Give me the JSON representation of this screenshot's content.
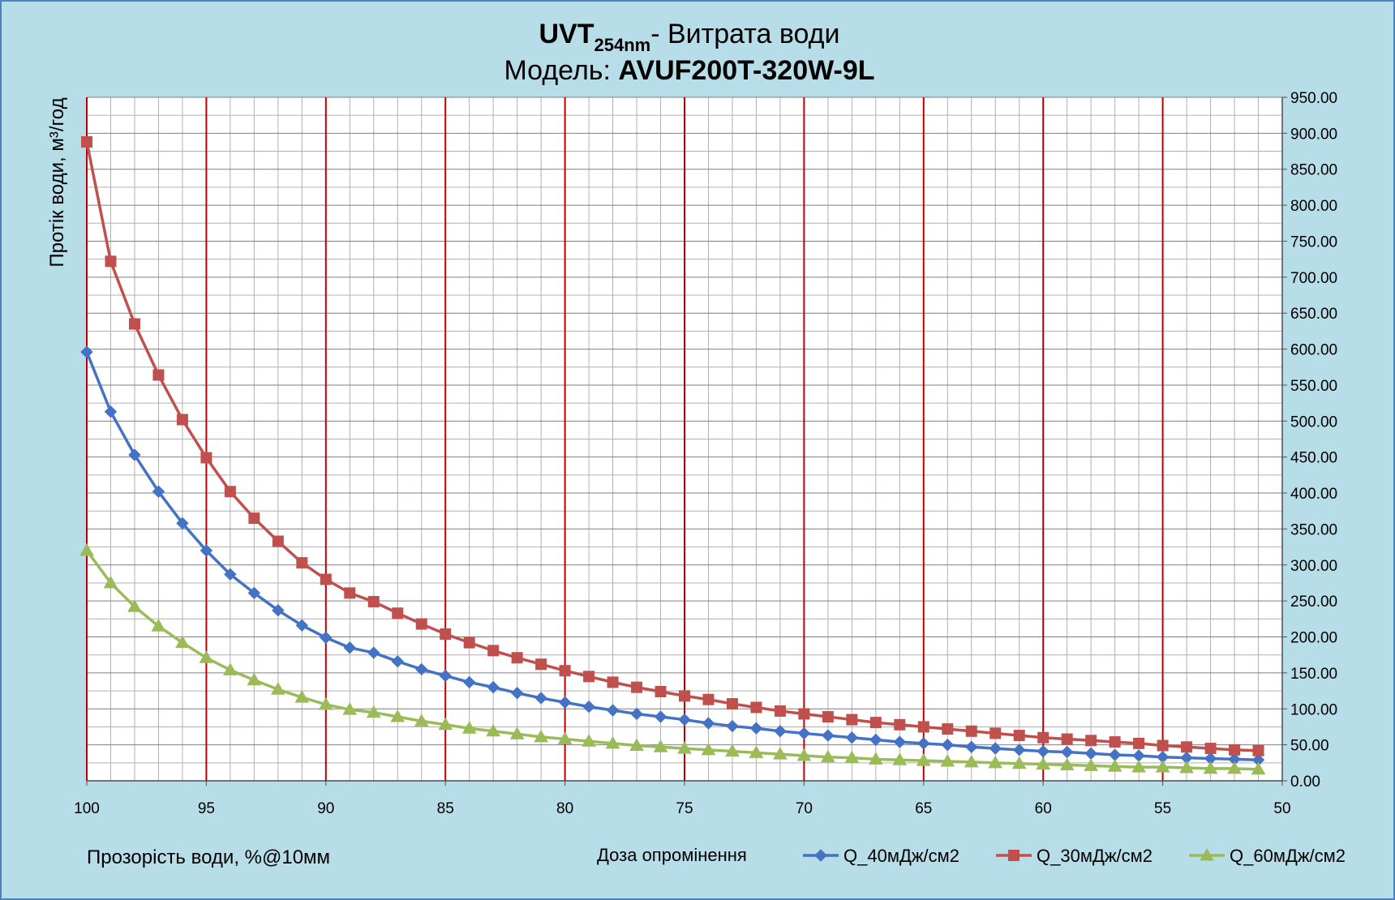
{
  "chart_data": {
    "type": "line",
    "title_parts": {
      "bold": "UVT",
      "sub": "254nm",
      "rest": "- Витрата води",
      "line2_prefix": "Модель: ",
      "line2_bold": "AVUF200T-320W-9L"
    },
    "xlabel": "Прозорість води, %@10мм",
    "ylabel": "Протік води, м³/год",
    "legend_title": "Доза опромінення",
    "legend_position": "bottom-right",
    "x_reversed": true,
    "xlim": [
      100,
      50
    ],
    "ylim": [
      0,
      950
    ],
    "x_ticks": [
      "100",
      "95",
      "90",
      "85",
      "80",
      "75",
      "70",
      "65",
      "60",
      "55",
      "50"
    ],
    "y_ticks": [
      "0.00",
      "50.00",
      "100.00",
      "150.00",
      "200.00",
      "250.00",
      "300.00",
      "350.00",
      "400.00",
      "450.00",
      "500.00",
      "550.00",
      "600.00",
      "650.00",
      "700.00",
      "750.00",
      "800.00",
      "850.00",
      "900.00",
      "950.00"
    ],
    "grid": true,
    "x": [
      100,
      99,
      98,
      97,
      96,
      95,
      94,
      93,
      92,
      91,
      90,
      89,
      88,
      87,
      86,
      85,
      84,
      83,
      82,
      81,
      80,
      79,
      78,
      77,
      76,
      75,
      74,
      73,
      72,
      71,
      70,
      69,
      68,
      67,
      66,
      65,
      64,
      63,
      62,
      61,
      60,
      59,
      58,
      57,
      56,
      55,
      54,
      53,
      52,
      51
    ],
    "series": [
      {
        "name": "Q_40мДж/см2",
        "color": "#4472c4",
        "marker": "diamond",
        "values": [
          596,
          513,
          453,
          402,
          358,
          320,
          287,
          261,
          237,
          216,
          199,
          185,
          178,
          166,
          155,
          146,
          137,
          130,
          122,
          115,
          109,
          103,
          98,
          93,
          89,
          85,
          80,
          76,
          73,
          69,
          66,
          63,
          60,
          57,
          54,
          52,
          50,
          47,
          45,
          43,
          41,
          40,
          38,
          36,
          35,
          33,
          32,
          31,
          30,
          29
        ]
      },
      {
        "name": "Q_30мДж/см2",
        "color": "#c0504d",
        "marker": "square",
        "values": [
          888,
          722,
          635,
          564,
          502,
          449,
          402,
          365,
          333,
          303,
          280,
          261,
          249,
          233,
          218,
          204,
          192,
          181,
          171,
          162,
          153,
          145,
          137,
          130,
          124,
          118,
          113,
          107,
          102,
          97,
          93,
          89,
          85,
          81,
          78,
          75,
          72,
          69,
          66,
          63,
          60,
          58,
          56,
          54,
          52,
          49,
          47,
          45,
          43,
          42
        ]
      },
      {
        "name": "Q_60мДж/см2",
        "color": "#9bbb59",
        "marker": "triangle",
        "values": [
          320,
          275,
          242,
          215,
          192,
          171,
          154,
          140,
          127,
          116,
          106,
          99,
          95,
          89,
          83,
          78,
          73,
          69,
          65,
          61,
          58,
          55,
          52,
          49,
          47,
          45,
          43,
          41,
          39,
          37,
          35,
          33,
          32,
          30,
          29,
          28,
          27,
          26,
          25,
          24,
          23,
          22,
          21,
          20,
          19,
          19,
          18,
          17,
          17,
          16
        ]
      }
    ]
  }
}
